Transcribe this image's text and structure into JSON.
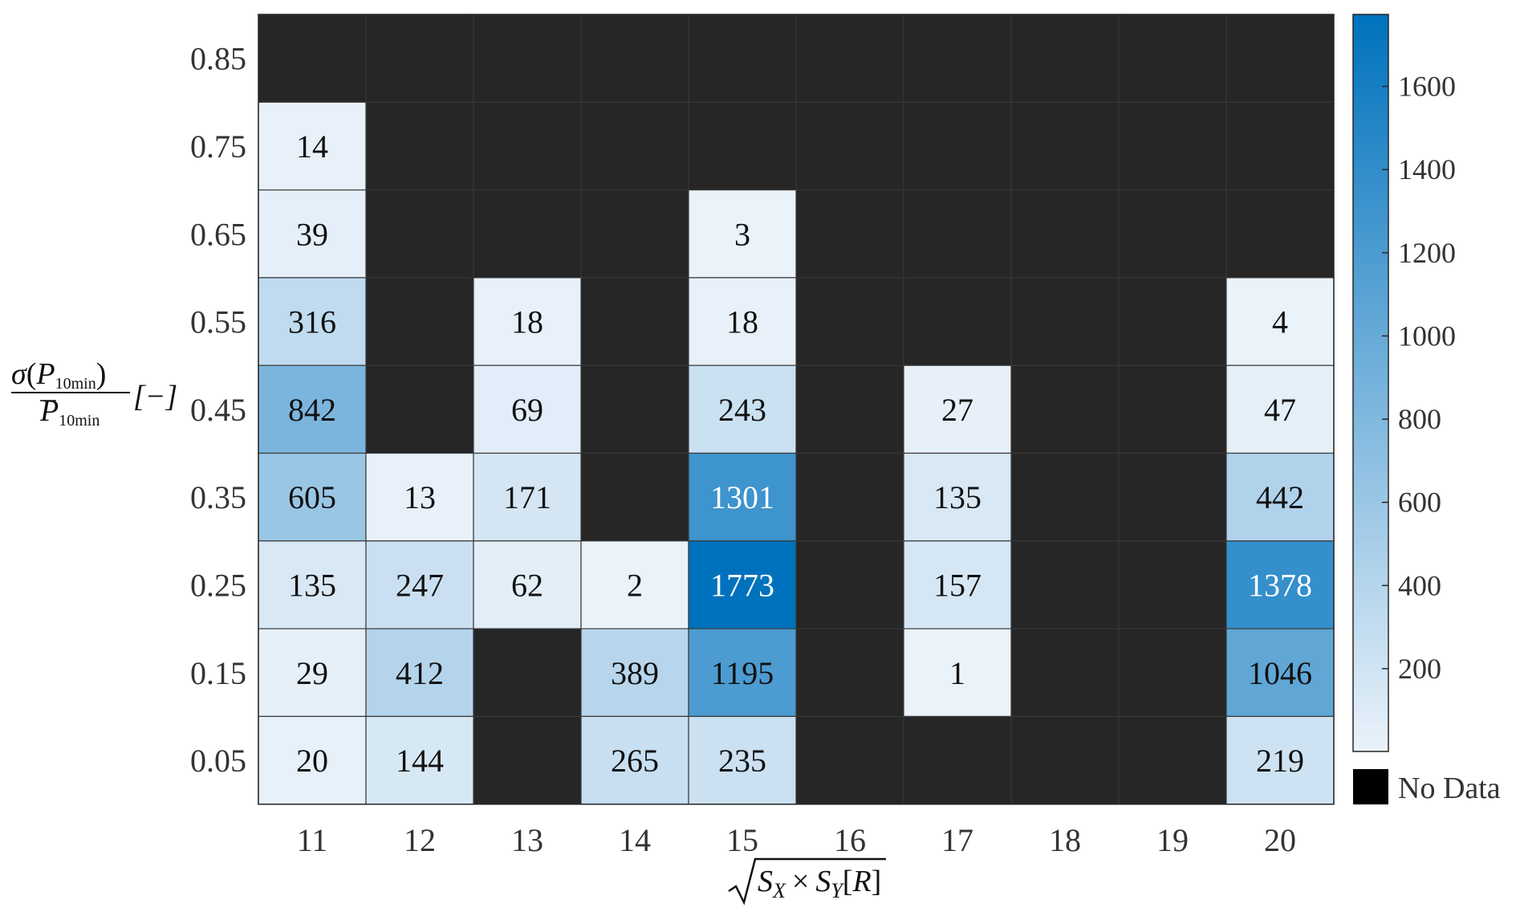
{
  "chart_data": {
    "type": "heatmap",
    "title": "",
    "x_categories": [
      "11",
      "12",
      "13",
      "14",
      "15",
      "16",
      "17",
      "18",
      "19",
      "20"
    ],
    "y_categories": [
      "0.85",
      "0.75",
      "0.65",
      "0.55",
      "0.45",
      "0.35",
      "0.25",
      "0.15",
      "0.05"
    ],
    "values": [
      [
        null,
        null,
        null,
        null,
        null,
        null,
        null,
        null,
        null,
        null
      ],
      [
        14,
        null,
        null,
        null,
        null,
        null,
        null,
        null,
        null,
        null
      ],
      [
        39,
        null,
        null,
        null,
        3,
        null,
        null,
        null,
        null,
        null
      ],
      [
        316,
        null,
        18,
        null,
        18,
        null,
        null,
        null,
        null,
        4
      ],
      [
        842,
        null,
        69,
        null,
        243,
        null,
        27,
        null,
        null,
        47
      ],
      [
        605,
        13,
        171,
        null,
        1301,
        null,
        135,
        null,
        null,
        442
      ],
      [
        135,
        247,
        62,
        2,
        1773,
        null,
        157,
        null,
        null,
        1378
      ],
      [
        29,
        412,
        null,
        389,
        1195,
        null,
        1,
        null,
        null,
        1046
      ],
      [
        20,
        144,
        null,
        265,
        235,
        null,
        null,
        null,
        null,
        219
      ]
    ],
    "xlabel": {
      "math": "S",
      "sub_x": "X",
      "times": "×",
      "sub_y": "Y",
      "unit_open": "[",
      "unit": "R",
      "unit_close": "]"
    },
    "ylabel": {
      "num_sigma": "σ",
      "paren_open": "(",
      "P": "P",
      "sub": "10min",
      "paren_close": ")",
      "unit": "[−]"
    },
    "colorbar": {
      "min": 1,
      "max": 1773,
      "ticks": [
        "200",
        "400",
        "600",
        "800",
        "1000",
        "1200",
        "1400",
        "1600"
      ],
      "low_color": "#eaf2fa",
      "high_color": "#0072bd"
    },
    "nodata": {
      "label": "No Data",
      "color": "#262626",
      "swatch_color": "#000000"
    },
    "grid": true,
    "legend_placement": "bottom-right"
  }
}
